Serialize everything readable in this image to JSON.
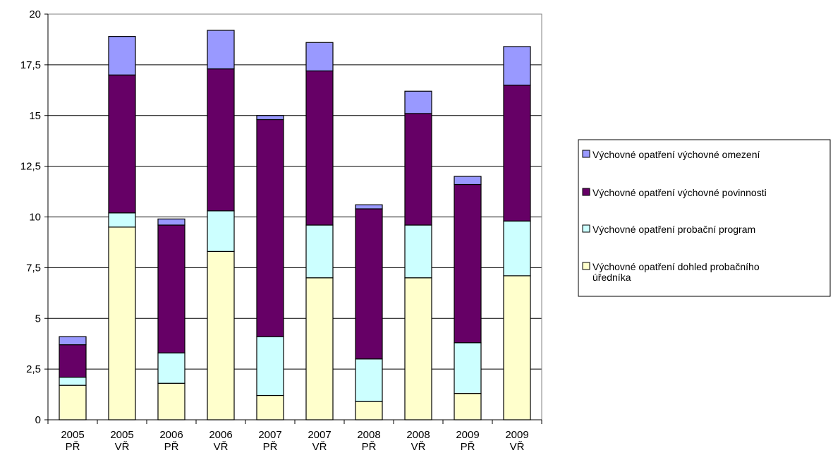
{
  "chart_data": {
    "type": "bar",
    "stacked": true,
    "categories": [
      [
        "2005",
        "PŘ"
      ],
      [
        "2005",
        "VŘ"
      ],
      [
        "2006",
        "PŘ"
      ],
      [
        "2006",
        "VŘ"
      ],
      [
        "2007",
        "PŘ"
      ],
      [
        "2007",
        "VŘ"
      ],
      [
        "2008",
        "PŘ"
      ],
      [
        "2008",
        "VŘ"
      ],
      [
        "2009",
        "PŘ"
      ],
      [
        "2009",
        "VŘ"
      ]
    ],
    "yticks": [
      "0",
      "2,5",
      "5",
      "7,5",
      "10",
      "12,5",
      "15",
      "17,5",
      "20"
    ],
    "ylim": [
      0,
      20
    ],
    "grid": true,
    "legend_position": "right",
    "series": [
      {
        "name": "Výchovné opatření dohled probačního úředníka",
        "name_lines": [
          "Výchovné opatření dohled probačního",
          "úředníka"
        ],
        "color": "#ffffcc",
        "values": [
          1.7,
          9.5,
          1.8,
          8.3,
          1.2,
          7.0,
          0.9,
          7.0,
          1.3,
          7.1
        ]
      },
      {
        "name": "Výchovné opatření probační program",
        "name_lines": [
          "Výchovné opatření probační program"
        ],
        "color": "#ccffff",
        "values": [
          0.4,
          0.7,
          1.5,
          2.0,
          2.9,
          2.6,
          2.1,
          2.6,
          2.5,
          2.7
        ]
      },
      {
        "name": "Výchovné opatření výchovné povinnosti",
        "name_lines": [
          "Výchovné opatření výchovné povinnosti"
        ],
        "color": "#660066",
        "values": [
          1.6,
          6.8,
          6.3,
          7.0,
          10.7,
          7.6,
          7.4,
          5.5,
          7.8,
          6.7
        ]
      },
      {
        "name": "Výchovné opatření výchovné omezení",
        "name_lines": [
          "Výchovné opatření výchovné omezení"
        ],
        "color": "#9999ff",
        "values": [
          0.4,
          1.9,
          0.3,
          1.9,
          0.2,
          1.4,
          0.2,
          1.1,
          0.4,
          1.9
        ]
      }
    ]
  }
}
